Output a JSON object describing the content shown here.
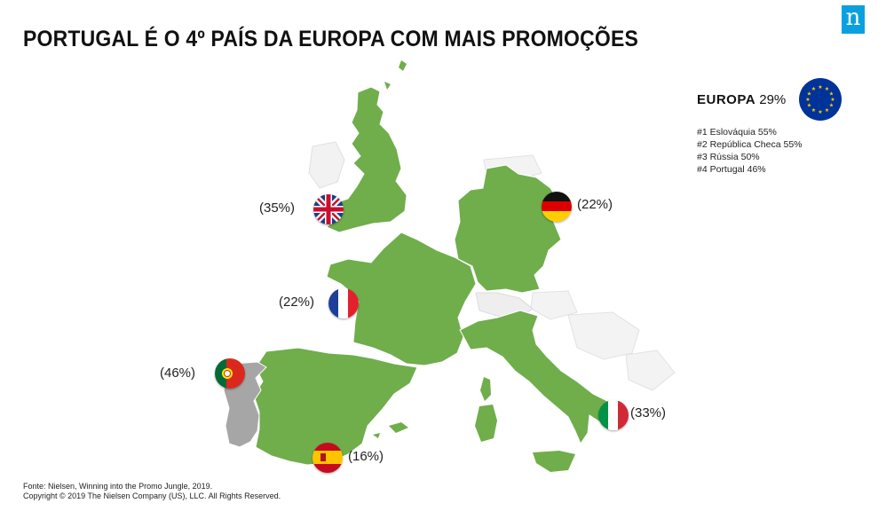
{
  "title": "PORTUGAL É O 4º PAÍS DA EUROPA COM MAIS PROMOÇÕES",
  "logo": {
    "letter": "n",
    "icon": "nielsen-logo-icon",
    "color": "#0aa0e0"
  },
  "colors": {
    "highlight_countries": "#6fae4b",
    "portugal": "#a6a6a6",
    "background_countries": "#f2f2f2"
  },
  "countries": [
    {
      "name": "UK",
      "flag": "uk-flag-icon",
      "value": "(35%)"
    },
    {
      "name": "Alemanha",
      "flag": "germany-flag-icon",
      "value": "(22%)"
    },
    {
      "name": "França",
      "flag": "france-flag-icon",
      "value": "(22%)"
    },
    {
      "name": "Portugal",
      "flag": "portugal-flag-icon",
      "value": "(46%)"
    },
    {
      "name": "Itália",
      "flag": "italy-flag-icon",
      "value": "(33%)"
    },
    {
      "name": "Espanha",
      "flag": "spain-flag-icon",
      "value": "(16%)"
    }
  ],
  "europa": {
    "label": "EUROPA",
    "value": "29%",
    "flag": "eu-flag-icon",
    "ranking": [
      "#1 Eslováquia 55%",
      "#2 República Checa 55%",
      "#3 Rússia 50%",
      "#4 Portugal 46%"
    ]
  },
  "source": {
    "line1": "Fonte: Nielsen, Winning into the Promo Jungle, 2019.",
    "line2": "Copyright © 2019 The Nielsen Company (US), LLC. All Rights Reserved."
  }
}
